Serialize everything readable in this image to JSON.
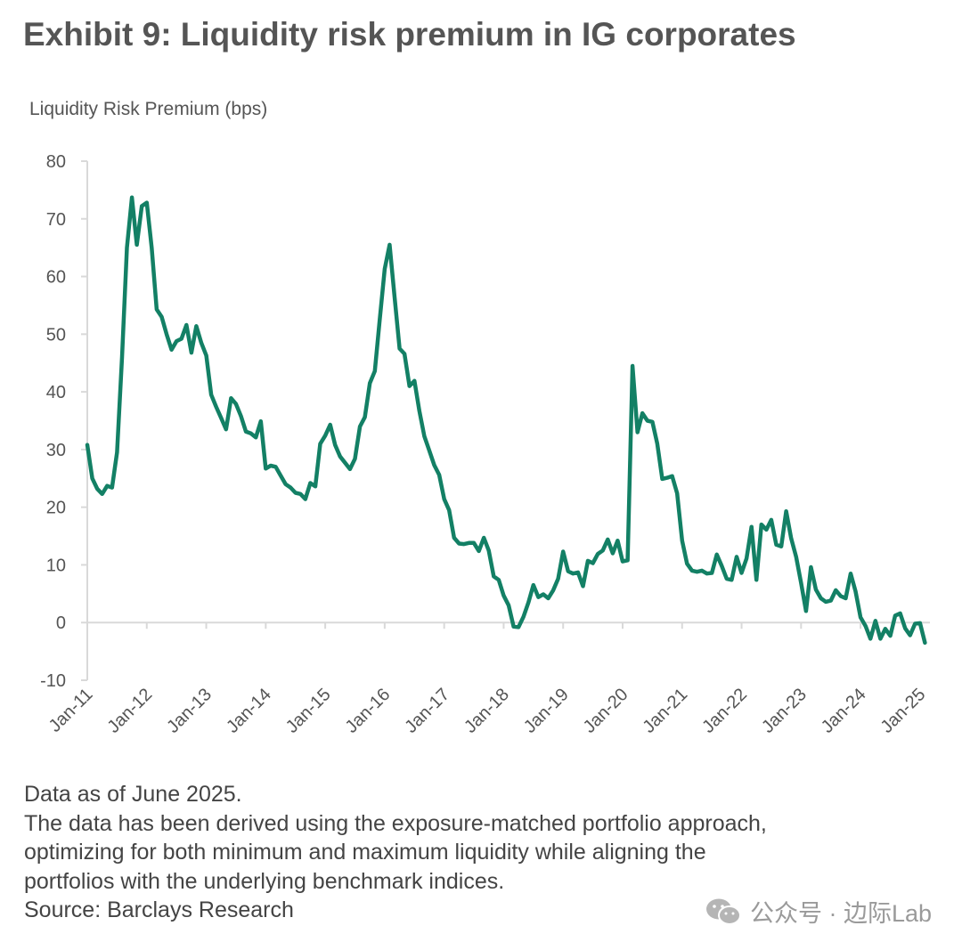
{
  "title": "Exhibit 9: Liquidity risk premium in IG corporates",
  "notes": {
    "line1": "Data as of June 2025.",
    "line2": "The data has been derived using the exposure-matched portfolio approach,",
    "line3": "optimizing for both minimum and maximum liquidity while aligning the",
    "line4": "portfolios with the underlying benchmark indices.",
    "line5": "Source: Barclays Research"
  },
  "watermark": {
    "text": "公众号 · 边际Lab",
    "icon": "wechat-icon"
  },
  "colors": {
    "line": "#138065",
    "axis": "#d9d9d9",
    "text": "#555555"
  },
  "chart_data": {
    "type": "line",
    "title": "Exhibit 9: Liquidity risk premium in IG corporates",
    "ylabel": "Liquidity Risk Premium (bps)",
    "xlabel": "",
    "ylim": [
      -10,
      80
    ],
    "yticks": [
      -10,
      0,
      10,
      20,
      30,
      40,
      50,
      60,
      70,
      80
    ],
    "xlim": [
      0,
      170
    ],
    "xticks": [
      {
        "label": "Jan-11",
        "x": 0
      },
      {
        "label": "Jan-12",
        "x": 12
      },
      {
        "label": "Jan-13",
        "x": 24
      },
      {
        "label": "Jan-14",
        "x": 36
      },
      {
        "label": "Jan-15",
        "x": 48
      },
      {
        "label": "Jan-16",
        "x": 60
      },
      {
        "label": "Jan-17",
        "x": 72
      },
      {
        "label": "Jan-18",
        "x": 84
      },
      {
        "label": "Jan-19",
        "x": 96
      },
      {
        "label": "Jan-20",
        "x": 108
      },
      {
        "label": "Jan-21",
        "x": 120
      },
      {
        "label": "Jan-22",
        "x": 132
      },
      {
        "label": "Jan-23",
        "x": 144
      },
      {
        "label": "Jan-24",
        "x": 156
      },
      {
        "label": "Jan-25",
        "x": 168
      }
    ],
    "grid": false,
    "series": [
      {
        "name": "Liquidity Risk Premium",
        "x_unit": "months since Jan-11",
        "points": [
          [
            0,
            30.8
          ],
          [
            1,
            25.0
          ],
          [
            2,
            23.2
          ],
          [
            3,
            22.3
          ],
          [
            4,
            23.7
          ],
          [
            5,
            23.4
          ],
          [
            6,
            29.5
          ],
          [
            7,
            46.0
          ],
          [
            8,
            65.0
          ],
          [
            9,
            73.7
          ],
          [
            10,
            65.5
          ],
          [
            11,
            72.2
          ],
          [
            12,
            72.8
          ],
          [
            13,
            65.0
          ],
          [
            14,
            54.3
          ],
          [
            15,
            53.0
          ],
          [
            16,
            50.0
          ],
          [
            17,
            47.3
          ],
          [
            18,
            48.8
          ],
          [
            19,
            49.2
          ],
          [
            20,
            51.6
          ],
          [
            21,
            46.8
          ],
          [
            22,
            51.4
          ],
          [
            23,
            48.5
          ],
          [
            24,
            46.3
          ],
          [
            25,
            39.5
          ],
          [
            26,
            37.4
          ],
          [
            27,
            35.5
          ],
          [
            28,
            33.5
          ],
          [
            29,
            38.9
          ],
          [
            30,
            37.9
          ],
          [
            31,
            35.8
          ],
          [
            32,
            33.1
          ],
          [
            33,
            32.8
          ],
          [
            34,
            32.1
          ],
          [
            35,
            34.9
          ],
          [
            36,
            26.7
          ],
          [
            37,
            27.2
          ],
          [
            38,
            27.0
          ],
          [
            39,
            25.5
          ],
          [
            40,
            24.0
          ],
          [
            41,
            23.4
          ],
          [
            42,
            22.5
          ],
          [
            43,
            22.3
          ],
          [
            44,
            21.4
          ],
          [
            45,
            24.2
          ],
          [
            46,
            23.6
          ],
          [
            47,
            31.0
          ],
          [
            48,
            32.4
          ],
          [
            49,
            34.3
          ],
          [
            50,
            30.8
          ],
          [
            51,
            28.8
          ],
          [
            52,
            27.7
          ],
          [
            53,
            26.6
          ],
          [
            54,
            28.4
          ],
          [
            55,
            34.0
          ],
          [
            56,
            35.6
          ],
          [
            57,
            41.5
          ],
          [
            58,
            43.6
          ],
          [
            59,
            52.5
          ],
          [
            60,
            61.3
          ],
          [
            61,
            65.5
          ],
          [
            62,
            56.4
          ],
          [
            63,
            47.5
          ],
          [
            64,
            46.6
          ],
          [
            65,
            41.0
          ],
          [
            66,
            41.9
          ],
          [
            67,
            36.7
          ],
          [
            68,
            32.3
          ],
          [
            69,
            29.8
          ],
          [
            70,
            27.3
          ],
          [
            71,
            25.6
          ],
          [
            72,
            21.4
          ],
          [
            73,
            19.5
          ],
          [
            74,
            14.7
          ],
          [
            75,
            13.7
          ],
          [
            76,
            13.6
          ],
          [
            77,
            13.8
          ],
          [
            78,
            13.8
          ],
          [
            79,
            12.4
          ],
          [
            80,
            14.7
          ],
          [
            81,
            12.5
          ],
          [
            82,
            8.0
          ],
          [
            83,
            7.4
          ],
          [
            84,
            4.7
          ],
          [
            85,
            3.0
          ],
          [
            86,
            -0.7
          ],
          [
            87,
            -0.8
          ],
          [
            88,
            1.0
          ],
          [
            89,
            3.5
          ],
          [
            90,
            6.5
          ],
          [
            91,
            4.4
          ],
          [
            92,
            4.9
          ],
          [
            93,
            4.2
          ],
          [
            94,
            5.6
          ],
          [
            95,
            7.6
          ],
          [
            96,
            12.3
          ],
          [
            97,
            8.9
          ],
          [
            98,
            8.5
          ],
          [
            99,
            8.7
          ],
          [
            100,
            6.3
          ],
          [
            101,
            10.7
          ],
          [
            102,
            10.3
          ],
          [
            103,
            11.9
          ],
          [
            104,
            12.5
          ],
          [
            105,
            14.4
          ],
          [
            106,
            12.0
          ],
          [
            107,
            14.2
          ],
          [
            108,
            10.6
          ],
          [
            109,
            10.8
          ],
          [
            110,
            44.5
          ],
          [
            111,
            33.0
          ],
          [
            112,
            36.3
          ],
          [
            113,
            35.0
          ],
          [
            114,
            34.8
          ],
          [
            115,
            31.0
          ],
          [
            116,
            24.9
          ],
          [
            117,
            25.1
          ],
          [
            118,
            25.4
          ],
          [
            119,
            22.4
          ],
          [
            120,
            14.2
          ],
          [
            121,
            10.2
          ],
          [
            122,
            9.0
          ],
          [
            123,
            8.8
          ],
          [
            124,
            9.0
          ],
          [
            125,
            8.5
          ],
          [
            126,
            8.6
          ],
          [
            127,
            11.8
          ],
          [
            128,
            9.8
          ],
          [
            129,
            7.6
          ],
          [
            130,
            7.4
          ],
          [
            131,
            11.4
          ],
          [
            132,
            8.6
          ],
          [
            133,
            11.1
          ],
          [
            134,
            16.6
          ],
          [
            135,
            7.4
          ],
          [
            136,
            17.0
          ],
          [
            137,
            16.1
          ],
          [
            138,
            17.8
          ],
          [
            139,
            13.5
          ],
          [
            140,
            13.2
          ],
          [
            141,
            19.3
          ],
          [
            142,
            14.6
          ],
          [
            143,
            11.4
          ],
          [
            144,
            6.9
          ],
          [
            145,
            2.0
          ],
          [
            146,
            9.6
          ],
          [
            147,
            5.7
          ],
          [
            148,
            4.2
          ],
          [
            149,
            3.6
          ],
          [
            150,
            3.8
          ],
          [
            151,
            5.6
          ],
          [
            152,
            4.6
          ],
          [
            153,
            4.2
          ],
          [
            154,
            8.5
          ],
          [
            155,
            5.4
          ],
          [
            156,
            0.9
          ],
          [
            157,
            -0.6
          ],
          [
            158,
            -2.8
          ],
          [
            159,
            0.3
          ],
          [
            160,
            -2.8
          ],
          [
            161,
            -1.1
          ],
          [
            162,
            -2.3
          ],
          [
            163,
            1.2
          ],
          [
            164,
            1.6
          ],
          [
            165,
            -1.0
          ],
          [
            166,
            -2.2
          ],
          [
            167,
            -0.2
          ],
          [
            168,
            -0.1
          ],
          [
            169,
            -3.5
          ]
        ]
      }
    ]
  }
}
